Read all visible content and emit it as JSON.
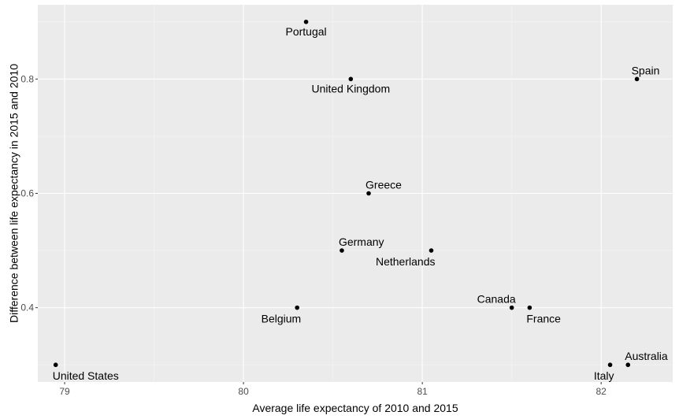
{
  "colors": {
    "panel_background": "#ebebeb",
    "grid_major": "#ffffff",
    "grid_minor": "#f5f5f5",
    "point": "#000000",
    "tick": "#333333"
  },
  "chart_data": {
    "type": "scatter",
    "xlabel": "Average life expectancy of 2010 and 2015",
    "ylabel": "Difference between life expectancy in 2015 and 2010",
    "xlim": [
      78.85,
      82.4
    ],
    "ylim": [
      0.27,
      0.93
    ],
    "x_ticks": [
      79,
      80,
      81,
      82
    ],
    "x_tick_labels": [
      "79",
      "80",
      "81",
      "82"
    ],
    "y_ticks": [
      0.4,
      0.6,
      0.8
    ],
    "y_tick_labels": [
      "0.4",
      "0.6",
      "0.8"
    ],
    "grid": true,
    "points": [
      {
        "label": "Portugal",
        "x": 80.35,
        "y": 0.9,
        "label_pos": "below"
      },
      {
        "label": "United Kingdom",
        "x": 80.6,
        "y": 0.8,
        "label_pos": "below"
      },
      {
        "label": "Spain",
        "x": 82.2,
        "y": 0.8,
        "label_pos": "above"
      },
      {
        "label": "Greece",
        "x": 80.7,
        "y": 0.6,
        "label_pos": "above-right"
      },
      {
        "label": "Germany",
        "x": 80.55,
        "y": 0.5,
        "label_pos": "above-right"
      },
      {
        "label": "Netherlands",
        "x": 81.05,
        "y": 0.5,
        "label_pos": "below-left"
      },
      {
        "label": "Canada",
        "x": 81.5,
        "y": 0.4,
        "label_pos": "above-left"
      },
      {
        "label": "France",
        "x": 81.6,
        "y": 0.4,
        "label_pos": "below-right"
      },
      {
        "label": "Belgium",
        "x": 80.3,
        "y": 0.4,
        "label_pos": "below-left"
      },
      {
        "label": "United States",
        "x": 78.95,
        "y": 0.3,
        "label_pos": "below-right"
      },
      {
        "label": "Italy",
        "x": 82.05,
        "y": 0.3,
        "label_pos": "below-left"
      },
      {
        "label": "Australia",
        "x": 82.15,
        "y": 0.3,
        "label_pos": "above-right"
      }
    ]
  }
}
